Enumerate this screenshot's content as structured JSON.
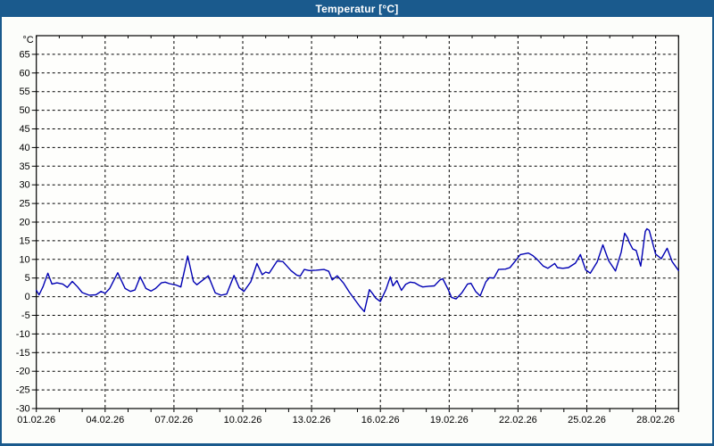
{
  "window": {
    "title": "Temperatur [°C]"
  },
  "colors": {
    "titlebar_bg": "#1a5a8d",
    "titlebar_text": "#ffffff",
    "frame_border": "#1a5a8d",
    "page_bg": "#fcfdfa",
    "plot_bg": "#fefefc",
    "grid": "#000000",
    "axis": "#000000",
    "label": "#000000",
    "line": "#0000b3"
  },
  "chart_data": {
    "type": "line",
    "title": "Temperatur [°C]",
    "y_unit_label": "°C",
    "xlabel": "",
    "ylabel": "°C",
    "ylim": [
      -30,
      70
    ],
    "y_ticks": [
      65,
      60,
      55,
      50,
      45,
      40,
      35,
      30,
      25,
      20,
      15,
      10,
      5,
      0,
      -5,
      -10,
      -15,
      -20,
      -25,
      -30
    ],
    "xlim_days": [
      0,
      28
    ],
    "x_tick_days": [
      0,
      3,
      6,
      9,
      12,
      15,
      18,
      21,
      24,
      27
    ],
    "x_tick_labels": [
      "01.02.26",
      "04.02.26",
      "07.02.26",
      "10.02.26",
      "13.02.26",
      "16.02.26",
      "19.02.26",
      "22.02.26",
      "25.02.26",
      "28.02.26"
    ],
    "x_minor_tick_interval_days": 1,
    "grid": "dashed",
    "legend": "none",
    "series": [
      {
        "name": "Temperatur",
        "color": "#0000b3",
        "points": [
          [
            0.0,
            1.7
          ],
          [
            0.12,
            0.5
          ],
          [
            0.3,
            2.8
          ],
          [
            0.5,
            6.3
          ],
          [
            0.68,
            3.4
          ],
          [
            0.9,
            3.7
          ],
          [
            1.15,
            3.4
          ],
          [
            1.35,
            2.5
          ],
          [
            1.57,
            4.1
          ],
          [
            1.8,
            2.6
          ],
          [
            2.0,
            1.1
          ],
          [
            2.3,
            0.4
          ],
          [
            2.6,
            0.5
          ],
          [
            2.82,
            1.4
          ],
          [
            3.0,
            0.9
          ],
          [
            3.2,
            2.2
          ],
          [
            3.55,
            6.4
          ],
          [
            3.87,
            2.2
          ],
          [
            4.1,
            1.4
          ],
          [
            4.3,
            1.8
          ],
          [
            4.53,
            5.3
          ],
          [
            4.78,
            2.2
          ],
          [
            5.0,
            1.5
          ],
          [
            5.2,
            2.2
          ],
          [
            5.45,
            3.7
          ],
          [
            5.62,
            3.9
          ],
          [
            5.8,
            3.5
          ],
          [
            6.1,
            3.1
          ],
          [
            6.3,
            2.6
          ],
          [
            6.6,
            10.9
          ],
          [
            6.85,
            4.1
          ],
          [
            7.0,
            3.2
          ],
          [
            7.25,
            4.4
          ],
          [
            7.5,
            5.6
          ],
          [
            7.8,
            1.0
          ],
          [
            8.05,
            0.4
          ],
          [
            8.3,
            0.7
          ],
          [
            8.62,
            5.7
          ],
          [
            8.85,
            2.4
          ],
          [
            9.05,
            1.4
          ],
          [
            9.35,
            4.0
          ],
          [
            9.62,
            8.9
          ],
          [
            9.85,
            5.9
          ],
          [
            10.0,
            6.6
          ],
          [
            10.15,
            6.3
          ],
          [
            10.5,
            9.6
          ],
          [
            10.75,
            9.4
          ],
          [
            11.1,
            7.0
          ],
          [
            11.35,
            5.8
          ],
          [
            11.5,
            5.5
          ],
          [
            11.68,
            7.3
          ],
          [
            11.9,
            7.0
          ],
          [
            12.2,
            7.1
          ],
          [
            12.55,
            7.3
          ],
          [
            12.75,
            6.8
          ],
          [
            12.9,
            4.5
          ],
          [
            13.12,
            5.6
          ],
          [
            13.4,
            3.6
          ],
          [
            13.65,
            1.2
          ],
          [
            13.9,
            -0.9
          ],
          [
            14.1,
            -2.6
          ],
          [
            14.3,
            -4.0
          ],
          [
            14.52,
            1.9
          ],
          [
            14.65,
            0.9
          ],
          [
            14.8,
            -0.4
          ],
          [
            15.0,
            -1.3
          ],
          [
            15.25,
            2.0
          ],
          [
            15.43,
            5.3
          ],
          [
            15.55,
            2.9
          ],
          [
            15.72,
            4.3
          ],
          [
            15.92,
            1.7
          ],
          [
            16.1,
            3.3
          ],
          [
            16.3,
            3.9
          ],
          [
            16.5,
            3.7
          ],
          [
            16.7,
            3.0
          ],
          [
            16.85,
            2.6
          ],
          [
            17.1,
            2.8
          ],
          [
            17.35,
            2.9
          ],
          [
            17.6,
            4.5
          ],
          [
            17.72,
            4.8
          ],
          [
            17.95,
            2.0
          ],
          [
            18.1,
            -0.2
          ],
          [
            18.3,
            -0.6
          ],
          [
            18.55,
            1.0
          ],
          [
            18.8,
            3.4
          ],
          [
            18.95,
            3.6
          ],
          [
            19.15,
            1.4
          ],
          [
            19.35,
            0.2
          ],
          [
            19.6,
            4.0
          ],
          [
            19.75,
            5.1
          ],
          [
            19.95,
            5.0
          ],
          [
            20.15,
            7.3
          ],
          [
            20.45,
            7.4
          ],
          [
            20.65,
            7.8
          ],
          [
            20.85,
            9.3
          ],
          [
            21.1,
            11.3
          ],
          [
            21.45,
            11.7
          ],
          [
            21.65,
            11.0
          ],
          [
            21.85,
            9.9
          ],
          [
            22.1,
            8.2
          ],
          [
            22.3,
            7.6
          ],
          [
            22.6,
            8.9
          ],
          [
            22.72,
            7.8
          ],
          [
            22.95,
            7.6
          ],
          [
            23.2,
            7.8
          ],
          [
            23.5,
            9.0
          ],
          [
            23.72,
            11.3
          ],
          [
            23.95,
            7.2
          ],
          [
            24.15,
            6.3
          ],
          [
            24.45,
            9.3
          ],
          [
            24.7,
            13.9
          ],
          [
            24.95,
            9.7
          ],
          [
            25.25,
            6.9
          ],
          [
            25.5,
            12.0
          ],
          [
            25.65,
            17.0
          ],
          [
            25.78,
            15.8
          ],
          [
            25.85,
            14.6
          ],
          [
            26.0,
            12.8
          ],
          [
            26.15,
            12.4
          ],
          [
            26.35,
            8.2
          ],
          [
            26.55,
            17.5
          ],
          [
            26.62,
            18.2
          ],
          [
            26.72,
            17.8
          ],
          [
            27.0,
            11.4
          ],
          [
            27.25,
            10.2
          ],
          [
            27.5,
            13.0
          ],
          [
            27.72,
            9.4
          ],
          [
            28.0,
            7.0
          ]
        ]
      }
    ]
  }
}
